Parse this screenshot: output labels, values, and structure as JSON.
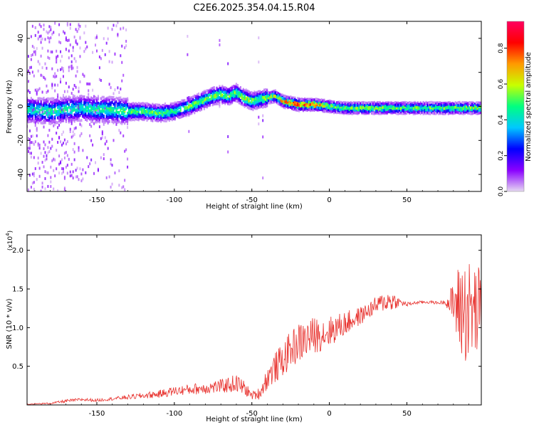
{
  "title": "C2E6.2025.354.04.15.R04",
  "chart_data": [
    {
      "type": "heatmap",
      "xlabel": "Height of straight line (km)",
      "ylabel": "Frequency (Hz)",
      "xlim": [
        -195,
        98
      ],
      "ylim": [
        -50,
        50
      ],
      "xticks": [
        -150,
        -100,
        -50,
        0,
        50
      ],
      "yticks": [
        -40,
        -20,
        0,
        20,
        40
      ],
      "colorbar": {
        "label": "Normalized spectral amplitude",
        "range": [
          0,
          0.95
        ],
        "ticks": [
          "0.0",
          "0.2",
          "0.4",
          "0.6",
          "0.8"
        ],
        "tick_values": [
          0,
          0.2,
          0.4,
          0.6,
          0.8
        ],
        "colormap": [
          "#e6d9f2",
          "#8a00ff",
          "#0000ff",
          "#00c8ff",
          "#00ff80",
          "#c8ff00",
          "#ff9900",
          "#ff0000",
          "#ff0060"
        ]
      },
      "ridge": {
        "x": [
          -195,
          -180,
          -170,
          -160,
          -150,
          -140,
          -130,
          -120,
          -110,
          -100,
          -90,
          -80,
          -75,
          -70,
          -65,
          -60,
          -55,
          -50,
          -45,
          -40,
          -35,
          -30,
          -25,
          -20,
          -10,
          0,
          10,
          30,
          50,
          70,
          98
        ],
        "freq_hz": [
          -2,
          -3,
          -2,
          -1,
          -2,
          -2,
          -3,
          -3,
          -4,
          -3,
          0,
          4,
          6,
          7,
          6,
          8,
          5,
          3,
          4,
          5,
          6,
          3,
          2,
          1,
          1,
          0,
          -1,
          -1,
          -1,
          -1,
          -1
        ],
        "amplitude": [
          0.45,
          0.5,
          0.5,
          0.45,
          0.5,
          0.5,
          0.55,
          0.5,
          0.55,
          0.5,
          0.55,
          0.6,
          0.6,
          0.6,
          0.55,
          0.55,
          0.6,
          0.6,
          0.55,
          0.6,
          0.6,
          0.75,
          0.85,
          0.85,
          0.8,
          0.6,
          0.55,
          0.6,
          0.55,
          0.55,
          0.6
        ]
      }
    },
    {
      "type": "line",
      "xlabel": "Height of straight line (km)",
      "ylabel": "SNR (10 * v/v)",
      "scale_label": "(x10",
      "scale_exponent": "4",
      "scale_suffix": ")",
      "xlim": [
        -195,
        98
      ],
      "ylim": [
        0,
        2.2
      ],
      "xticks": [
        -150,
        -100,
        -50,
        0,
        50
      ],
      "yticks": [
        0.5,
        1.0,
        1.5,
        2.0
      ],
      "ytick_labels": [
        "0.5",
        "1.0",
        "1.5",
        "2.0"
      ],
      "color": "#e8332f",
      "series": [
        {
          "name": "SNR",
          "x": [
            -195,
            -180,
            -170,
            -160,
            -150,
            -140,
            -130,
            -120,
            -110,
            -100,
            -90,
            -80,
            -70,
            -60,
            -55,
            -50,
            -45,
            -40,
            -35,
            -30,
            -25,
            -20,
            -15,
            -10,
            -5,
            0,
            5,
            10,
            15,
            20,
            25,
            30,
            35,
            40,
            45,
            50,
            55,
            60,
            65,
            70,
            75,
            80,
            85,
            90,
            98
          ],
          "values": [
            0.01,
            0.02,
            0.05,
            0.07,
            0.06,
            0.08,
            0.1,
            0.12,
            0.14,
            0.18,
            0.2,
            0.22,
            0.24,
            0.28,
            0.22,
            0.12,
            0.15,
            0.35,
            0.48,
            0.58,
            0.72,
            0.8,
            0.85,
            0.9,
            0.92,
            0.95,
            1.0,
            1.05,
            1.1,
            1.15,
            1.22,
            1.28,
            1.33,
            1.35,
            1.33,
            1.3,
            1.32,
            1.33,
            1.33,
            1.32,
            1.33,
            1.3,
            1.25,
            1.2,
            1.2
          ],
          "noise_amplitude": [
            0.005,
            0.01,
            0.02,
            0.02,
            0.02,
            0.02,
            0.03,
            0.04,
            0.05,
            0.06,
            0.07,
            0.08,
            0.09,
            0.12,
            0.1,
            0.05,
            0.08,
            0.15,
            0.2,
            0.22,
            0.24,
            0.26,
            0.25,
            0.24,
            0.22,
            0.2,
            0.18,
            0.16,
            0.14,
            0.12,
            0.1,
            0.12,
            0.12,
            0.15,
            0.05,
            0.03,
            0.02,
            0.02,
            0.02,
            0.02,
            0.03,
            0.3,
            0.7,
            0.7,
            0.6
          ]
        }
      ]
    }
  ]
}
